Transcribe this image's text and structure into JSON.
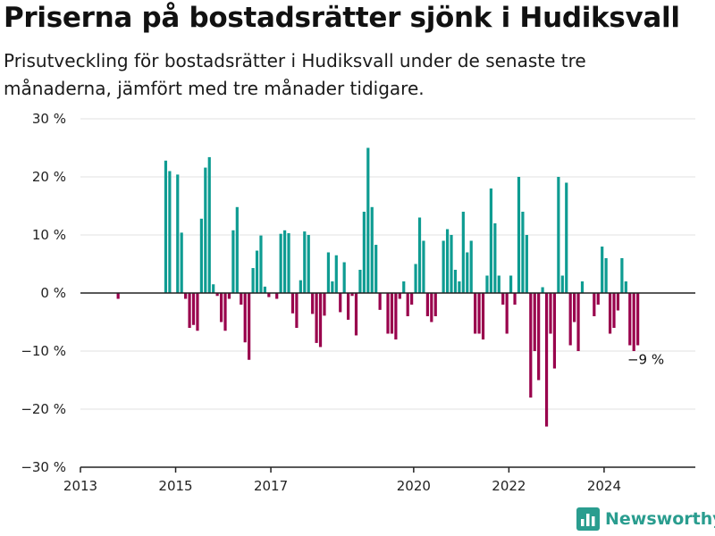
{
  "title": "Priserna på bostadsrätter sjönk i Hudiksvall",
  "subtitle": "Prisutveckling för bostadsrätter i Hudiksvall under de senaste tre månaderna, jämfört med tre månader tidigare.",
  "brand": {
    "name": "Newsworthy",
    "color": "#2a9d8f",
    "icon": "bar-chart-logo-icon"
  },
  "colors": {
    "positive": "#0e9c92",
    "negative": "#99004c",
    "grid": "#e0e0e0",
    "axis": "#222222"
  },
  "chart_data": {
    "type": "bar",
    "title": "Priserna på bostadsrätter sjönk i Hudiksvall",
    "subtitle": "Prisutveckling för bostadsrätter i Hudiksvall under de senaste tre månaderna, jämfört med tre månader tidigare.",
    "xlabel": "",
    "ylabel": "",
    "ylim": [
      -30,
      30
    ],
    "y_ticks": [
      30,
      20,
      10,
      0,
      -10,
      -20,
      -30
    ],
    "y_tick_labels": [
      "30 %",
      "20 %",
      "10 %",
      "0 %",
      "−10 %",
      "−20 %",
      "−30 %"
    ],
    "x_ticks": [
      "2013",
      "2015",
      "2017",
      "2020",
      "2022",
      "2024"
    ],
    "x_tick_dates": [
      "2013-01",
      "2015-01",
      "2017-01",
      "2020-01",
      "2022-01",
      "2024-01"
    ],
    "x_range": [
      "2013-01",
      "2025-12"
    ],
    "grid": true,
    "legend": "none",
    "unit": "%",
    "annotation": {
      "date": "2024-11",
      "value": -9,
      "label": "−9 %"
    },
    "data": [
      {
        "date": "2013-10",
        "value": -1
      },
      {
        "date": "2014-10",
        "value": 22.8
      },
      {
        "date": "2014-11",
        "value": 21
      },
      {
        "date": "2015-01",
        "value": 20.4
      },
      {
        "date": "2015-02",
        "value": 10.4
      },
      {
        "date": "2015-03",
        "value": -1
      },
      {
        "date": "2015-04",
        "value": -6
      },
      {
        "date": "2015-05",
        "value": -5.5
      },
      {
        "date": "2015-06",
        "value": -6.5
      },
      {
        "date": "2015-07",
        "value": 12.8
      },
      {
        "date": "2015-08",
        "value": 21.6
      },
      {
        "date": "2015-09",
        "value": 23.4
      },
      {
        "date": "2015-10",
        "value": 1.5
      },
      {
        "date": "2015-11",
        "value": -0.5
      },
      {
        "date": "2015-12",
        "value": -5
      },
      {
        "date": "2016-01",
        "value": -6.5
      },
      {
        "date": "2016-02",
        "value": -1
      },
      {
        "date": "2016-03",
        "value": 10.8
      },
      {
        "date": "2016-04",
        "value": 14.8
      },
      {
        "date": "2016-05",
        "value": -2
      },
      {
        "date": "2016-06",
        "value": -8.5
      },
      {
        "date": "2016-07",
        "value": -11.5
      },
      {
        "date": "2016-08",
        "value": 4.3
      },
      {
        "date": "2016-09",
        "value": 7.3
      },
      {
        "date": "2016-10",
        "value": 9.9
      },
      {
        "date": "2016-11",
        "value": 1.1
      },
      {
        "date": "2016-12",
        "value": -0.7
      },
      {
        "date": "2017-02",
        "value": -1
      },
      {
        "date": "2017-03",
        "value": 10.2
      },
      {
        "date": "2017-04",
        "value": 10.8
      },
      {
        "date": "2017-05",
        "value": 10.3
      },
      {
        "date": "2017-06",
        "value": -3.5
      },
      {
        "date": "2017-07",
        "value": -6
      },
      {
        "date": "2017-08",
        "value": 2.2
      },
      {
        "date": "2017-09",
        "value": 10.6
      },
      {
        "date": "2017-10",
        "value": 10
      },
      {
        "date": "2017-11",
        "value": -3.6
      },
      {
        "date": "2017-12",
        "value": -8.6
      },
      {
        "date": "2018-01",
        "value": -9.3
      },
      {
        "date": "2018-02",
        "value": -3.9
      },
      {
        "date": "2018-03",
        "value": 7
      },
      {
        "date": "2018-04",
        "value": 2
      },
      {
        "date": "2018-05",
        "value": 6.5
      },
      {
        "date": "2018-06",
        "value": -3.3
      },
      {
        "date": "2018-07",
        "value": 5.3
      },
      {
        "date": "2018-08",
        "value": -4.6
      },
      {
        "date": "2018-09",
        "value": -0.5
      },
      {
        "date": "2018-10",
        "value": -7.3
      },
      {
        "date": "2018-11",
        "value": 4
      },
      {
        "date": "2018-12",
        "value": 14
      },
      {
        "date": "2019-01",
        "value": 25
      },
      {
        "date": "2019-02",
        "value": 14.8
      },
      {
        "date": "2019-03",
        "value": 8.3
      },
      {
        "date": "2019-04",
        "value": -2.9
      },
      {
        "date": "2019-06",
        "value": -7
      },
      {
        "date": "2019-07",
        "value": -7
      },
      {
        "date": "2019-08",
        "value": -8
      },
      {
        "date": "2019-09",
        "value": -1
      },
      {
        "date": "2019-10",
        "value": 2
      },
      {
        "date": "2019-11",
        "value": -4
      },
      {
        "date": "2019-12",
        "value": -2
      },
      {
        "date": "2020-01",
        "value": 5
      },
      {
        "date": "2020-02",
        "value": 13
      },
      {
        "date": "2020-03",
        "value": 9
      },
      {
        "date": "2020-04",
        "value": -4
      },
      {
        "date": "2020-05",
        "value": -5
      },
      {
        "date": "2020-06",
        "value": -4
      },
      {
        "date": "2020-08",
        "value": 9
      },
      {
        "date": "2020-09",
        "value": 11
      },
      {
        "date": "2020-10",
        "value": 10
      },
      {
        "date": "2020-11",
        "value": 4
      },
      {
        "date": "2020-12",
        "value": 2
      },
      {
        "date": "2021-01",
        "value": 14
      },
      {
        "date": "2021-02",
        "value": 7
      },
      {
        "date": "2021-03",
        "value": 9
      },
      {
        "date": "2021-04",
        "value": -7
      },
      {
        "date": "2021-05",
        "value": -7
      },
      {
        "date": "2021-06",
        "value": -8
      },
      {
        "date": "2021-07",
        "value": 3
      },
      {
        "date": "2021-08",
        "value": 18
      },
      {
        "date": "2021-09",
        "value": 12
      },
      {
        "date": "2021-10",
        "value": 3
      },
      {
        "date": "2021-11",
        "value": -2
      },
      {
        "date": "2021-12",
        "value": -7
      },
      {
        "date": "2022-01",
        "value": 3
      },
      {
        "date": "2022-02",
        "value": -2
      },
      {
        "date": "2022-03",
        "value": 20
      },
      {
        "date": "2022-04",
        "value": 14
      },
      {
        "date": "2022-05",
        "value": 10
      },
      {
        "date": "2022-06",
        "value": -18
      },
      {
        "date": "2022-07",
        "value": -10
      },
      {
        "date": "2022-08",
        "value": -15
      },
      {
        "date": "2022-09",
        "value": 1
      },
      {
        "date": "2022-10",
        "value": -23
      },
      {
        "date": "2022-11",
        "value": -7
      },
      {
        "date": "2022-12",
        "value": -13
      },
      {
        "date": "2023-01",
        "value": 20
      },
      {
        "date": "2023-02",
        "value": 3
      },
      {
        "date": "2023-03",
        "value": 19
      },
      {
        "date": "2023-04",
        "value": -9
      },
      {
        "date": "2023-05",
        "value": -5
      },
      {
        "date": "2023-06",
        "value": -10
      },
      {
        "date": "2023-07",
        "value": 2
      },
      {
        "date": "2023-10",
        "value": -4
      },
      {
        "date": "2023-11",
        "value": -2
      },
      {
        "date": "2023-12",
        "value": 8
      },
      {
        "date": "2024-01",
        "value": 6
      },
      {
        "date": "2024-02",
        "value": -7
      },
      {
        "date": "2024-03",
        "value": -6
      },
      {
        "date": "2024-04",
        "value": -3
      },
      {
        "date": "2024-05",
        "value": 6
      },
      {
        "date": "2024-06",
        "value": 2
      },
      {
        "date": "2024-07",
        "value": -9
      },
      {
        "date": "2024-08",
        "value": -10
      },
      {
        "date": "2024-09",
        "value": -9
      }
    ]
  }
}
